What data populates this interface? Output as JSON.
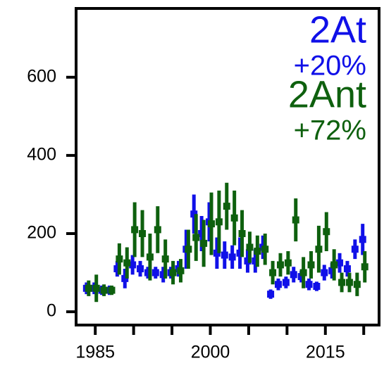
{
  "chart_data": {
    "type": "errorbar",
    "x": [
      1984,
      1985,
      1986,
      1987,
      1988,
      1989,
      1990,
      1991,
      1992,
      1993,
      1994,
      1995,
      1996,
      1997,
      1998,
      1999,
      2000,
      2001,
      2002,
      2003,
      2004,
      2005,
      2006,
      2007,
      2008,
      2009,
      2010,
      2011,
      2012,
      2013,
      2014,
      2015,
      2016,
      2017,
      2018,
      2019,
      2020
    ],
    "series": [
      {
        "name": "2At",
        "color": "#1010e8",
        "values": [
          60,
          60,
          55,
          55,
          110,
          85,
          120,
          110,
          100,
          100,
          95,
          100,
          110,
          160,
          250,
          200,
          230,
          150,
          145,
          140,
          150,
          130,
          130,
          165,
          45,
          70,
          75,
          95,
          90,
          70,
          65,
          100,
          105,
          125,
          110,
          160,
          185
        ],
        "errors": [
          15,
          15,
          12,
          12,
          20,
          25,
          25,
          20,
          15,
          15,
          20,
          15,
          20,
          50,
          50,
          45,
          50,
          40,
          35,
          30,
          40,
          30,
          30,
          30,
          12,
          15,
          15,
          20,
          15,
          15,
          12,
          20,
          20,
          25,
          20,
          25,
          40
        ]
      },
      {
        "name": "2Ant",
        "color": "#0e600e",
        "values": [
          60,
          60,
          55,
          55,
          135,
          125,
          210,
          200,
          140,
          210,
          135,
          100,
          105,
          160,
          190,
          175,
          225,
          230,
          270,
          240,
          200,
          165,
          155,
          160,
          100,
          120,
          125,
          235,
          100,
          120,
          160,
          205,
          120,
          75,
          75,
          70,
          115
        ],
        "errors": [
          20,
          35,
          15,
          12,
          40,
          40,
          70,
          60,
          60,
          60,
          50,
          30,
          30,
          50,
          60,
          60,
          80,
          80,
          60,
          70,
          60,
          40,
          40,
          40,
          30,
          30,
          30,
          55,
          40,
          35,
          60,
          50,
          40,
          25,
          25,
          30,
          40
        ]
      }
    ],
    "annotations": [
      {
        "text": "2At",
        "color": "#1010e8"
      },
      {
        "text": "+20%",
        "color": "#1010e8"
      },
      {
        "text": "2Ant",
        "color": "#0e600e"
      },
      {
        "text": "+72%",
        "color": "#0e600e"
      }
    ],
    "xlim": [
      1982.5,
      2022
    ],
    "xticks": [
      1985,
      2000,
      2015
    ],
    "xminorticks": [
      1990,
      1995,
      2005,
      2010,
      2020
    ],
    "ylim": [
      -34,
      776
    ],
    "yticks": [
      0,
      200,
      400,
      600
    ]
  }
}
